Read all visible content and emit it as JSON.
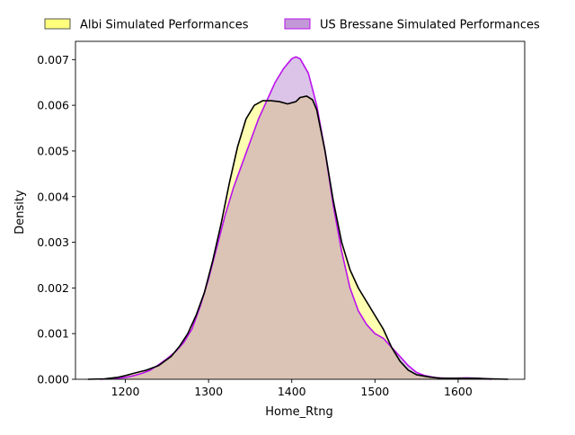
{
  "chart_data": {
    "type": "area",
    "title": "",
    "xlabel": "Home_Rtng",
    "ylabel": "Density",
    "xlim": [
      1140,
      1680
    ],
    "ylim": [
      0,
      0.0074
    ],
    "xticks": [
      1200,
      1300,
      1400,
      1500,
      1600
    ],
    "yticks": [
      0.0,
      0.001,
      0.002,
      0.003,
      0.004,
      0.005,
      0.006,
      0.007
    ],
    "ytick_labels": [
      "0.000",
      "0.001",
      "0.002",
      "0.003",
      "0.004",
      "0.005",
      "0.006",
      "0.007"
    ],
    "grid": false,
    "legend_position": "top-center, outside",
    "series": [
      {
        "name": "Albi Simulated Performances",
        "fill_color": "#ffff66",
        "line_color": "#000000",
        "points": [
          [
            1155,
            0.0
          ],
          [
            1175,
            1e-05
          ],
          [
            1190,
            4e-05
          ],
          [
            1200,
            8e-05
          ],
          [
            1210,
            0.00013
          ],
          [
            1225,
            0.0002
          ],
          [
            1240,
            0.0003
          ],
          [
            1255,
            0.0005
          ],
          [
            1265,
            0.00072
          ],
          [
            1275,
            0.001
          ],
          [
            1285,
            0.0014
          ],
          [
            1295,
            0.0019
          ],
          [
            1305,
            0.0026
          ],
          [
            1315,
            0.0034
          ],
          [
            1325,
            0.0043
          ],
          [
            1335,
            0.0051
          ],
          [
            1345,
            0.0057
          ],
          [
            1355,
            0.006
          ],
          [
            1365,
            0.0061
          ],
          [
            1375,
            0.0061
          ],
          [
            1385,
            0.00608
          ],
          [
            1395,
            0.00603
          ],
          [
            1405,
            0.00608
          ],
          [
            1410,
            0.00617
          ],
          [
            1418,
            0.0062
          ],
          [
            1425,
            0.00612
          ],
          [
            1430,
            0.0059
          ],
          [
            1440,
            0.005
          ],
          [
            1450,
            0.0039
          ],
          [
            1460,
            0.003
          ],
          [
            1470,
            0.0024
          ],
          [
            1480,
            0.002
          ],
          [
            1490,
            0.0017
          ],
          [
            1500,
            0.0014
          ],
          [
            1510,
            0.0011
          ],
          [
            1520,
            0.0007
          ],
          [
            1530,
            0.0004
          ],
          [
            1540,
            0.0002
          ],
          [
            1550,
            0.0001
          ],
          [
            1565,
            5e-05
          ],
          [
            1580,
            2e-05
          ],
          [
            1600,
            2e-05
          ],
          [
            1620,
            2e-05
          ],
          [
            1640,
            1e-05
          ],
          [
            1660,
            0.0
          ]
        ]
      },
      {
        "name": "US Bressane Simulated Performances",
        "fill_color": "#9955bb",
        "line_color": "#bb11ee",
        "points": [
          [
            1170,
            0.0
          ],
          [
            1190,
            2e-05
          ],
          [
            1200,
            4e-05
          ],
          [
            1210,
            8e-05
          ],
          [
            1220,
            0.00013
          ],
          [
            1230,
            0.0002
          ],
          [
            1240,
            0.00032
          ],
          [
            1250,
            0.00045
          ],
          [
            1260,
            0.0006
          ],
          [
            1270,
            0.0008
          ],
          [
            1280,
            0.0011
          ],
          [
            1290,
            0.0016
          ],
          [
            1300,
            0.0022
          ],
          [
            1310,
            0.0029
          ],
          [
            1320,
            0.0036
          ],
          [
            1330,
            0.0042
          ],
          [
            1340,
            0.0047
          ],
          [
            1350,
            0.0052
          ],
          [
            1360,
            0.0057
          ],
          [
            1370,
            0.0061
          ],
          [
            1380,
            0.0065
          ],
          [
            1390,
            0.0068
          ],
          [
            1400,
            0.00702
          ],
          [
            1405,
            0.00706
          ],
          [
            1410,
            0.00702
          ],
          [
            1420,
            0.0067
          ],
          [
            1430,
            0.006
          ],
          [
            1440,
            0.005
          ],
          [
            1450,
            0.0038
          ],
          [
            1460,
            0.0028
          ],
          [
            1470,
            0.002
          ],
          [
            1480,
            0.0015
          ],
          [
            1490,
            0.0012
          ],
          [
            1500,
            0.001
          ],
          [
            1510,
            0.0009
          ],
          [
            1520,
            0.0007
          ],
          [
            1530,
            0.0005
          ],
          [
            1540,
            0.0003
          ],
          [
            1550,
            0.00015
          ],
          [
            1560,
            8e-05
          ],
          [
            1575,
            3e-05
          ],
          [
            1590,
            2e-05
          ],
          [
            1610,
            3e-05
          ],
          [
            1625,
            2e-05
          ],
          [
            1640,
            0.0
          ]
        ]
      }
    ]
  }
}
